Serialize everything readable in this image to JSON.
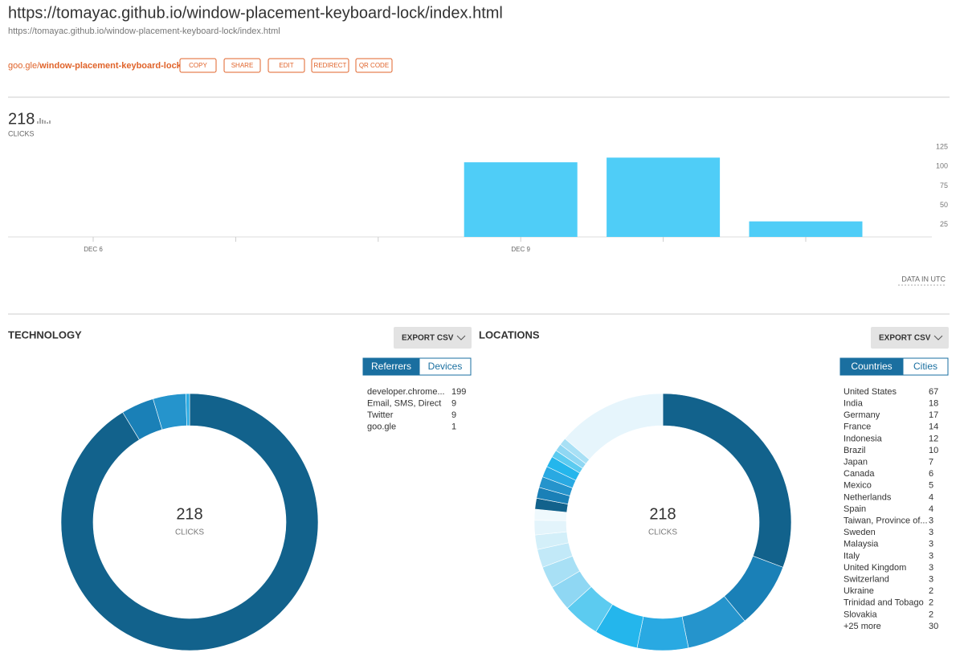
{
  "header": {
    "title": "https://tomayac.github.io/window-placement-keyboard-lock/index.html",
    "url": "https://tomayac.github.io/window-placement-keyboard-lock/index.html",
    "short_link_domain": "goo.gle/",
    "short_link_slug": "window-placement-keyboard-lock",
    "buttons": [
      "COPY",
      "SHARE",
      "EDIT",
      "REDIRECT",
      "QR CODE"
    ]
  },
  "summary": {
    "total": 218,
    "label": "CLICKS"
  },
  "chart_data": {
    "type": "bar",
    "categories": [
      "DEC 6",
      null,
      null,
      "DEC 9",
      null,
      null
    ],
    "values": [
      0,
      0,
      0,
      96,
      102,
      20
    ],
    "color": "#4fcdf7",
    "ylim": [
      0,
      125
    ],
    "yticks": [
      25,
      50,
      75,
      100,
      125
    ],
    "grid": false,
    "annotation": "DATA IN UTC"
  },
  "technology": {
    "title": "TECHNOLOGY",
    "export": "EXPORT CSV",
    "tabs": [
      "Referrers",
      "Devices"
    ],
    "total": 218,
    "total_label": "CLICKS",
    "items": [
      {
        "name": "developer.chrome...",
        "value": 199
      },
      {
        "name": "Email, SMS, Direct",
        "value": 9
      },
      {
        "name": "Twitter",
        "value": 9
      },
      {
        "name": "goo.gle",
        "value": 1
      }
    ],
    "colors": [
      "#12628c",
      "#1a80b7",
      "#2594cc",
      "#2aabe3"
    ]
  },
  "locations": {
    "title": "LOCATIONS",
    "export": "EXPORT CSV",
    "tabs": [
      "Countries",
      "Cities"
    ],
    "total": 218,
    "total_label": "CLICKS",
    "items": [
      {
        "name": "United States",
        "value": 67
      },
      {
        "name": "India",
        "value": 18
      },
      {
        "name": "Germany",
        "value": 17
      },
      {
        "name": "France",
        "value": 14
      },
      {
        "name": "Indonesia",
        "value": 12
      },
      {
        "name": "Brazil",
        "value": 10
      },
      {
        "name": "Japan",
        "value": 7
      },
      {
        "name": "Canada",
        "value": 6
      },
      {
        "name": "Mexico",
        "value": 5
      },
      {
        "name": "Netherlands",
        "value": 4
      },
      {
        "name": "Spain",
        "value": 4
      },
      {
        "name": "Taiwan, Province of...",
        "value": 3
      },
      {
        "name": "Sweden",
        "value": 3
      },
      {
        "name": "Malaysia",
        "value": 3
      },
      {
        "name": "Italy",
        "value": 3
      },
      {
        "name": "United Kingdom",
        "value": 3
      },
      {
        "name": "Switzerland",
        "value": 3
      },
      {
        "name": "Ukraine",
        "value": 2
      },
      {
        "name": "Trinidad and Tobago",
        "value": 2
      },
      {
        "name": "Slovakia",
        "value": 2
      },
      {
        "name": "+25 more",
        "value": 30
      }
    ],
    "colors": [
      "#12628c",
      "#1a80b7",
      "#2594cc",
      "#29a9e2",
      "#24b6ec",
      "#5ccbf0",
      "#8fd7f3",
      "#a8e0f5",
      "#c2e9f8",
      "#d3eff9",
      "#e3f4fb",
      "#eff9fd",
      "#12628c",
      "#1a80b7",
      "#2594cc",
      "#29a9e2",
      "#24b6ec",
      "#5ccbf0",
      "#8fd7f3",
      "#a8e0f5",
      "#e6f5fc"
    ]
  }
}
